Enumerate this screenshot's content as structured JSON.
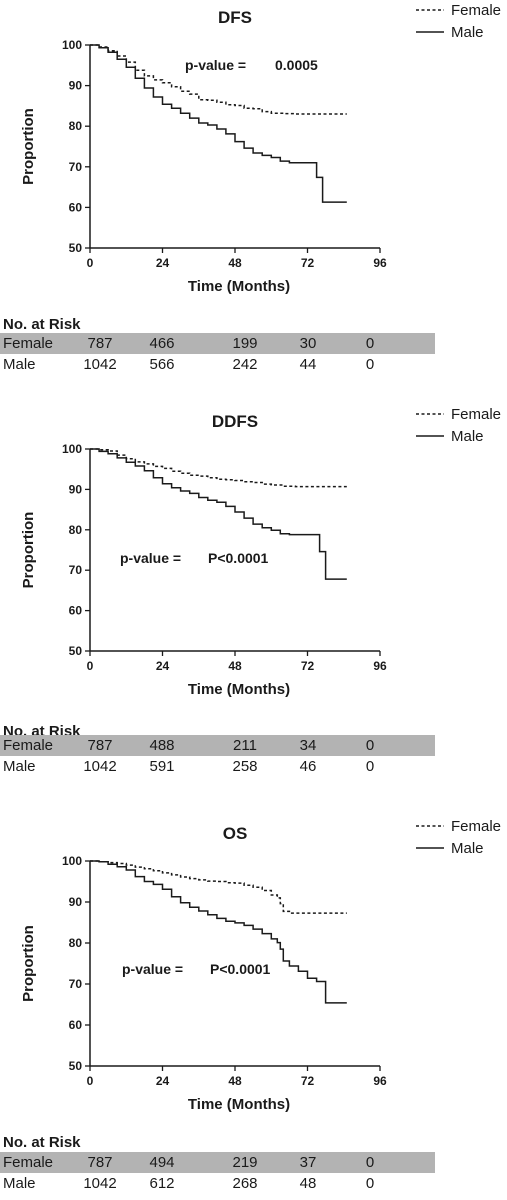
{
  "chart_data": [
    {
      "type": "line",
      "title": "DFS",
      "xlabel": "Time (Months)",
      "ylabel": "Proportion",
      "xlim": [
        0,
        96
      ],
      "ylim": [
        50,
        100
      ],
      "xticks": [
        "0",
        "24",
        "48",
        "72",
        "96"
      ],
      "yticks": [
        "50",
        "60",
        "70",
        "80",
        "90",
        "100"
      ],
      "legend_placement": "top-right",
      "p_value_label": "p-value =",
      "p_value": "0.0005",
      "series": [
        {
          "name": "Female",
          "style": "dashed",
          "x": [
            0,
            3,
            6,
            9,
            12,
            15,
            18,
            21,
            24,
            27,
            30,
            33,
            36,
            39,
            42,
            45,
            48,
            51,
            54,
            57,
            60,
            64,
            68,
            72,
            76,
            80,
            84,
            85
          ],
          "y": [
            100,
            99.5,
            98.6,
            97.3,
            95.8,
            93.8,
            92.4,
            91.4,
            90.7,
            89.7,
            88.6,
            87.9,
            86.5,
            86.4,
            85.9,
            85.3,
            85.1,
            84.4,
            84.3,
            83.6,
            83.2,
            83.1,
            83.0,
            83.0,
            83.0,
            83.0,
            83.0,
            83.0
          ]
        },
        {
          "name": "Male",
          "style": "solid",
          "x": [
            0,
            3,
            6,
            9,
            12,
            15,
            18,
            21,
            24,
            27,
            30,
            33,
            36,
            39,
            42,
            45,
            48,
            51,
            54,
            57,
            60,
            63,
            66,
            69,
            72,
            75,
            75,
            77,
            77,
            80,
            84,
            85
          ],
          "y": [
            100,
            99.3,
            98.2,
            96.5,
            94.5,
            91.8,
            89.4,
            87.2,
            85.4,
            84.4,
            83.2,
            82.0,
            80.8,
            80.3,
            79.3,
            78.1,
            76.2,
            74.6,
            73.4,
            72.8,
            72.3,
            71.4,
            71.0,
            71.0,
            71.0,
            71.0,
            67.4,
            67.4,
            61.3,
            61.3,
            61.3,
            61.3
          ]
        }
      ],
      "risk_table": {
        "title": "No. at Risk",
        "rows": [
          {
            "label": "Female",
            "values": [
              "787",
              "466",
              "199",
              "30",
              "0"
            ]
          },
          {
            "label": "Male",
            "values": [
              "1042",
              "566",
              "242",
              "44",
              "0"
            ]
          }
        ]
      }
    },
    {
      "type": "line",
      "title": "DDFS",
      "xlabel": "Time (Months)",
      "ylabel": "Proportion",
      "xlim": [
        0,
        96
      ],
      "ylim": [
        50,
        100
      ],
      "xticks": [
        "0",
        "24",
        "48",
        "72",
        "96"
      ],
      "yticks": [
        "50",
        "60",
        "70",
        "80",
        "90",
        "100"
      ],
      "legend_placement": "top-right",
      "p_value_label": "p-value =",
      "p_value": "P<0.0001",
      "series": [
        {
          "name": "Female",
          "style": "dashed",
          "x": [
            0,
            3,
            6,
            9,
            12,
            15,
            18,
            21,
            24,
            27,
            30,
            33,
            36,
            39,
            42,
            45,
            48,
            51,
            54,
            57,
            60,
            64,
            68,
            72,
            76,
            80,
            85
          ],
          "y": [
            100,
            99.8,
            99.5,
            98.5,
            97.6,
            96.8,
            96.3,
            95.7,
            95.2,
            94.5,
            94.0,
            93.5,
            93.3,
            92.9,
            92.5,
            92.4,
            92.2,
            91.9,
            91.7,
            91.3,
            91.1,
            90.8,
            90.7,
            90.7,
            90.7,
            90.7,
            90.7
          ]
        },
        {
          "name": "Male",
          "style": "solid",
          "x": [
            0,
            3,
            6,
            9,
            12,
            15,
            18,
            21,
            24,
            27,
            30,
            33,
            36,
            39,
            42,
            45,
            48,
            51,
            54,
            57,
            60,
            63,
            66,
            69,
            72,
            75,
            76,
            76,
            78,
            78,
            82,
            85
          ],
          "y": [
            100,
            99.4,
            98.8,
            97.8,
            96.7,
            95.8,
            94.6,
            92.9,
            91.4,
            90.4,
            89.6,
            89.0,
            88.0,
            87.3,
            86.8,
            85.8,
            84.4,
            82.9,
            81.4,
            80.5,
            79.9,
            79.0,
            78.8,
            78.8,
            78.8,
            78.8,
            78.8,
            74.6,
            74.6,
            67.8,
            67.8,
            67.8
          ]
        }
      ],
      "risk_table": {
        "title": "No. at Risk",
        "rows": [
          {
            "label": "Female",
            "values": [
              "787",
              "488",
              "211",
              "34",
              "0"
            ]
          },
          {
            "label": "Male",
            "values": [
              "1042",
              "591",
              "258",
              "46",
              "0"
            ]
          }
        ]
      }
    },
    {
      "type": "line",
      "title": "OS",
      "xlabel": "Time (Months)",
      "ylabel": "Proportion",
      "xlim": [
        0,
        96
      ],
      "ylim": [
        50,
        100
      ],
      "xticks": [
        "0",
        "24",
        "48",
        "72",
        "96"
      ],
      "yticks": [
        "50",
        "60",
        "70",
        "80",
        "90",
        "100"
      ],
      "legend_placement": "top-right",
      "p_value_label": "p-value =",
      "p_value": "P<0.0001",
      "series": [
        {
          "name": "Female",
          "style": "dashed",
          "x": [
            0,
            3,
            6,
            9,
            12,
            15,
            18,
            21,
            24,
            27,
            30,
            33,
            36,
            39,
            42,
            45,
            48,
            51,
            54,
            57,
            60,
            62,
            63,
            64,
            66,
            70,
            75,
            80,
            85
          ],
          "y": [
            100,
            99.8,
            99.6,
            99.4,
            99.0,
            98.5,
            98.1,
            97.6,
            97.1,
            96.6,
            96.1,
            95.7,
            95.4,
            95.1,
            95.0,
            94.7,
            94.6,
            94.1,
            93.6,
            92.8,
            91.7,
            91.0,
            89.6,
            87.7,
            87.3,
            87.3,
            87.3,
            87.3,
            87.3
          ]
        },
        {
          "name": "Male",
          "style": "solid",
          "x": [
            0,
            3,
            6,
            9,
            12,
            15,
            18,
            21,
            24,
            27,
            30,
            33,
            36,
            39,
            42,
            45,
            48,
            51,
            54,
            57,
            60,
            62,
            63,
            64,
            66,
            69,
            72,
            75,
            78,
            78,
            82,
            85
          ],
          "y": [
            100,
            99.8,
            99.2,
            98.6,
            97.8,
            96.2,
            95.0,
            94.3,
            93.1,
            91.3,
            89.8,
            88.7,
            87.8,
            86.9,
            86.0,
            85.3,
            84.9,
            84.3,
            83.4,
            82.3,
            81.0,
            80.1,
            78.5,
            75.6,
            74.4,
            73.1,
            71.4,
            70.6,
            70.6,
            65.4,
            65.4,
            65.4
          ]
        }
      ],
      "risk_table": {
        "title": "No. at Risk",
        "rows": [
          {
            "label": "Female",
            "values": [
              "787",
              "494",
              "219",
              "37",
              "0"
            ]
          },
          {
            "label": "Male",
            "values": [
              "1042",
              "612",
              "268",
              "48",
              "0"
            ]
          }
        ]
      }
    }
  ]
}
